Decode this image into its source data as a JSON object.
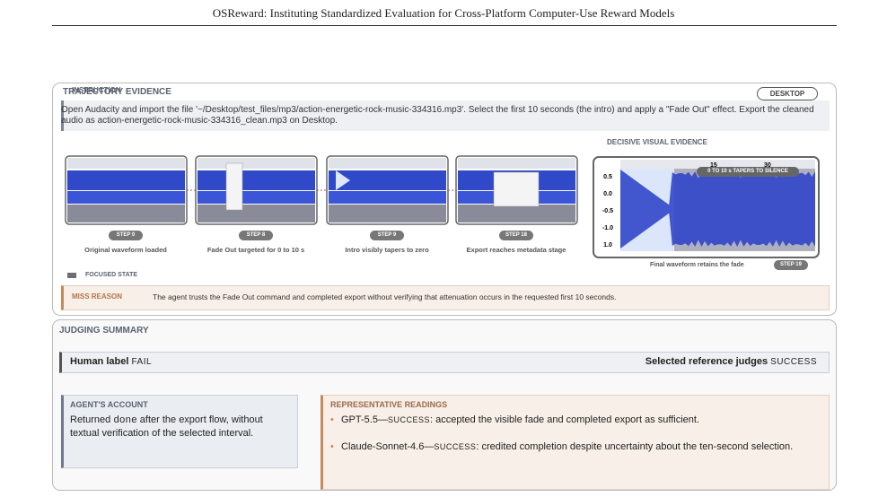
{
  "header": {
    "title": "OSReward: Instituting Standardized Evaluation for Cross-Platform Computer-Use Reward Models"
  },
  "trajectory": {
    "title": "TRAJECTORY EVIDENCE",
    "instruction": {
      "label": "INSTRUCTION",
      "platform": "DESKTOP",
      "text": "Open Audacity and import the file '~/Desktop/test_files/mp3/action-energetic-rock-music-334316.mp3'. Select the first 10 seconds (the intro) and apply a \"Fade Out\" effect. Export the cleaned audio as action-energetic-rock-music-334316_clean.mp3 on Desktop."
    },
    "steps": [
      {
        "step": "STEP 0",
        "caption": "Original waveform loaded"
      },
      {
        "step": "STEP 8",
        "caption": "Fade Out targeted for 0 to 10 s"
      },
      {
        "step": "STEP 9",
        "caption": "Intro visibly tapers to zero"
      },
      {
        "step": "STEP 18",
        "caption": "Export reaches metadata stage"
      }
    ],
    "decisive": {
      "label": "DECISIVE VISUAL EVIDENCE",
      "tag": "0 TO 10 s TAPERS TO SILENCE",
      "caption": "Final waveform retains the fade",
      "step": "STEP 19",
      "x_labels": [
        "15",
        "30"
      ],
      "y_labels": [
        "0.5",
        "0.0",
        "-0.5",
        "-1.0",
        "1.0"
      ]
    },
    "focused_state": "FOCUSED STATE",
    "miss_reason": {
      "label": "MISS REASON",
      "text": "The agent trusts the Fade Out command and completed export without verifying that attenuation occurs in the requested first 10 seconds."
    }
  },
  "judging": {
    "title": "JUDGING SUMMARY",
    "human": {
      "label": "Human label",
      "value": "FAIL"
    },
    "reference": {
      "label": "Selected reference judges",
      "value": "SUCCESS"
    },
    "agent": {
      "title": "AGENT'S ACCOUNT",
      "before": "Returned ",
      "code": "done",
      "after": " after the export flow, without textual verification of the selected interval."
    },
    "readings": {
      "title": "REPRESENTATIVE READINGS",
      "items": [
        {
          "model": "GPT-5.5—",
          "verdict": "SUCCESS",
          "text": ": accepted the visible fade and completed export as sufficient."
        },
        {
          "model": "Claude-Sonnet-4.6—",
          "verdict": "SUCCESS",
          "text": ": credited completion despite uncertainty about the ten-second selection."
        }
      ]
    }
  }
}
